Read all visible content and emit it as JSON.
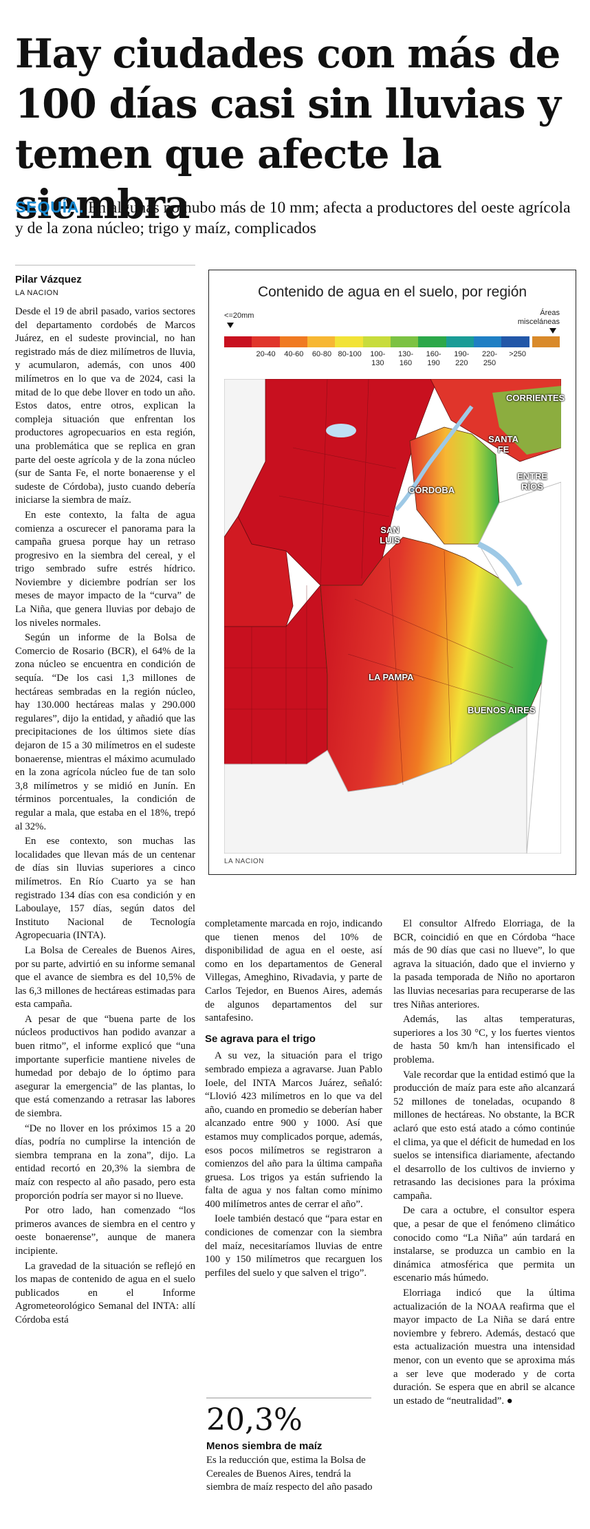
{
  "headline": "Hay ciudades con más de 100 días casi sin lluvias y temen que afecte la siembra",
  "deck": {
    "kicker": "SEQUÍA.",
    "text": "En algunas no hubo más de 10 mm; afecta a productores del oeste agrícola y de la zona núcleo; trigo y maíz, complicados"
  },
  "byline": {
    "author": "Pilar Vázquez",
    "outlet": "LA NACION"
  },
  "figure": {
    "title": "Contenido de agua en el suelo, por región",
    "legend_left": "<=20mm",
    "legend_right": "Áreas misceláneas",
    "legend_ranges": [
      "20-40",
      "40-60",
      "60-80",
      "80-100",
      "100-130",
      "130-160",
      "160-190",
      "190-220",
      "220-250",
      ">250"
    ],
    "legend_colors": [
      "#c8101f",
      "#e0352b",
      "#f07a22",
      "#f7b733",
      "#f2e337",
      "#c8dc3c",
      "#7cc243",
      "#2ca849",
      "#1a9c96",
      "#1f7fc4",
      "#2257a8",
      "#d98a2a"
    ],
    "regions": [
      "CORRIENTES",
      "SANTA FE",
      "ENTRE RÍOS",
      "CÓRDOBA",
      "SAN LUIS",
      "LA PAMPA",
      "BUENOS AIRES"
    ],
    "credit": "LA NACION"
  },
  "col1": [
    "Desde el 19 de abril pasado, varios sectores del departamento cordobés de Marcos Juárez, en el sudeste provincial, no han registrado más de diez milímetros de lluvia, y acumularon, además, con unos 400 milímetros en lo que va de 2024, casi la mitad de lo que debe llover en todo un año. Estos datos, entre otros, explican la compleja situación que enfrentan los productores agropecuarios en esta región, una problemática que se replica en gran parte del oeste agrícola y de la zona núcleo (sur de Santa Fe, el norte bonaerense y el sudeste de Córdoba), justo cuando debería iniciarse la siembra de maíz.",
    "En este contexto, la falta de agua comienza a oscurecer el panorama para la campaña gruesa porque hay un retraso progresivo en la siembra del cereal, y el trigo sembrado sufre estrés hídrico. Noviembre y diciembre podrían ser los meses de mayor impacto de la “curva” de La Niña, que genera lluvias por debajo de los niveles normales.",
    "Según un informe de la Bolsa de Comercio de Rosario (BCR), el 64% de la zona núcleo se encuentra en condición de sequía. “De los casi 1,3 millones de hectáreas sembradas en la región núcleo, hay 130.000 hectáreas malas y 290.000 regulares”, dijo la entidad, y añadió que las precipitaciones de los últimos siete días dejaron de 15 a 30 milímetros en el sudeste bonaerense, mientras el máximo acumulado en la zona agrícola núcleo fue de tan solo 3,8 milímetros y se midió en Junín. En términos porcentuales, la condición de regular a mala, que estaba en el 18%, trepó al 32%.",
    "En ese contexto, son muchas las localidades que llevan más de un centenar de días sin lluvias superiores a cinco milímetros. En Río Cuarto ya se han registrado 134 días con esa condición y en Laboulaye, 157 días, según datos del Instituto Nacional de Tecnología Agropecuaria (INTA).",
    "La Bolsa de Cereales de Buenos Aires, por su parte, advirtió en su informe semanal que el avance de siembra es del 10,5% de las 6,3 millones de hectáreas estimadas para esta campaña.",
    "A pesar de que “buena parte de los núcleos productivos han podido avanzar a buen ritmo”, el informe explicó que “una importante superficie mantiene niveles de humedad por debajo de lo óptimo para asegurar la emergencia” de las plantas, lo que está comenzando a retrasar las labores de siembra.",
    "“De no llover en los próximos 15 a 20 días, podría no cumplirse la intención de siembra temprana en la zona”, dijo. La entidad recortó en 20,3% la siembra de maíz con respecto al año pasado, pero esta proporción podría ser mayor si no llueve.",
    "Por otro lado, han comenzado “los primeros avances de siembra en el centro y oeste bonaerense”, aunque de manera incipiente.",
    "La gravedad de la situación se reflejó en los mapas de contenido de agua en el suelo publicados en el Informe Agrometeorológico Semanal del INTA: allí Córdoba está"
  ],
  "col2": {
    "para1": "completamente marcada en rojo, indicando que tienen menos del 10% de disponibilidad de agua en el oeste, así como en los departamentos de General Villegas, Ameghino, Rivadavia, y parte de Carlos Tejedor, en Buenos Aires, además de algunos departamentos del sur santafesino.",
    "subhead": "Se agrava para el trigo",
    "para2": "A su vez, la situación para el trigo sembrado empieza a agravarse. Juan Pablo Ioele, del INTA Marcos Juárez, señaló: “Llovió 423 milímetros en lo que va del año, cuando en promedio se deberían haber alcanzado entre 900 y 1000. Así que estamos muy complicados porque, además, esos pocos milímetros se registraron a comienzos del año para la última campaña gruesa. Los trigos ya están sufriendo la falta de agua y nos faltan como mínimo 400 milímetros antes de cerrar el año”.",
    "para3": "Ioele también destacó que “para estar en condiciones de comenzar con la siembra del maíz, necesitaríamos lluvias de entre 100 y 150 milímetros que recarguen los perfiles del suelo y que salven el trigo”."
  },
  "col3": [
    "El consultor Alfredo Elorriaga, de la BCR, coincidió en que en Córdoba “hace más de 90 días que casi no llueve”, lo que agrava la situación, dado que el invierno y la pasada temporada de Niño no aportaron las lluvias necesarias para recuperarse de las tres Niñas anteriores.",
    "Además, las altas temperaturas, superiores a los 30 °C, y los fuertes vientos de hasta 50 km/h han intensificado el problema.",
    "Vale recordar que la entidad estimó que la producción de maíz para este año alcanzará 52 millones de toneladas, ocupando 8 millones de hectáreas. No obstante, la BCR aclaró que esto está atado a cómo continúe el clima, ya que el déficit de humedad en los suelos se intensifica diariamente, afectando el desarrollo de los cultivos de invierno y retrasando las decisiones para la próxima campaña.",
    "De cara a octubre, el consultor espera que, a pesar de que el fenómeno climático conocido como “La Niña” aún tardará en instalarse, se produzca un cambio en la dinámica atmosférica que permita un escenario más húmedo.",
    "Elorriaga indicó que la última actualización de la NOAA reafirma que el mayor impacto de La Niña se dará entre noviembre y febrero. Además, destacó que esta actualización muestra una intensidad menor, con un evento que se aproxima más a ser leve que moderado y de corta duración. Se espera que en abril se alcance un estado de “neutralidad”. ●"
  ],
  "pullquote": {
    "value": "20,3%",
    "title": "Menos siembra de maíz",
    "text": "Es la reducción que, estima la Bolsa de Cereales de Buenos Aires, tendrá la siembra de maíz respecto del año pasado"
  }
}
